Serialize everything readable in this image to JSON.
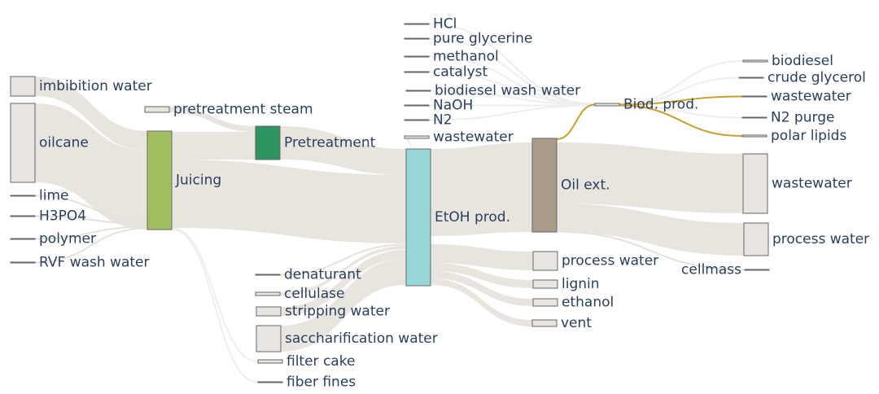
{
  "colors": {
    "link": "#e5e2db",
    "link_light": "#eeeeee",
    "link_gold": "#c8a030",
    "node_default": "#e8e5e0",
    "node_stroke": "#666666",
    "juicing": "#a3be60",
    "pretreatment": "#2e9462",
    "etoh": "#98d7d8",
    "oil_ext": "#ab9c8a",
    "label": "#2a3f5f"
  },
  "nodes": [
    {
      "id": "imbibition_water",
      "label": "imbibition water"
    },
    {
      "id": "oilcane",
      "label": "oilcane"
    },
    {
      "id": "lime",
      "label": "lime"
    },
    {
      "id": "h3po4",
      "label": "H3PO4"
    },
    {
      "id": "polymer",
      "label": "polymer"
    },
    {
      "id": "rvf",
      "label": "RVF wash water"
    },
    {
      "id": "pretreatment_steam",
      "label": "pretreatment steam"
    },
    {
      "id": "juicing",
      "label": "Juicing"
    },
    {
      "id": "pretreatment",
      "label": "Pretreatment"
    },
    {
      "id": "denaturant",
      "label": "denaturant"
    },
    {
      "id": "cellulase",
      "label": "cellulase"
    },
    {
      "id": "stripping_water",
      "label": "stripping water"
    },
    {
      "id": "sacch_water",
      "label": "saccharification water"
    },
    {
      "id": "filter_cake",
      "label": "filter cake"
    },
    {
      "id": "fiber_fines",
      "label": "fiber fines"
    },
    {
      "id": "hcl",
      "label": "HCl"
    },
    {
      "id": "pure_glycerine",
      "label": "pure glycerine"
    },
    {
      "id": "methanol",
      "label": "methanol"
    },
    {
      "id": "catalyst",
      "label": "catalyst"
    },
    {
      "id": "biod_wash",
      "label": "biodiesel wash water"
    },
    {
      "id": "naoh",
      "label": "NaOH"
    },
    {
      "id": "n2",
      "label": "N2"
    },
    {
      "id": "ww_mid",
      "label": "wastewater"
    },
    {
      "id": "etoh",
      "label": "EtOH prod."
    },
    {
      "id": "oil_ext",
      "label": "Oil ext."
    },
    {
      "id": "pw_mid",
      "label": "process water"
    },
    {
      "id": "lignin",
      "label": "lignin"
    },
    {
      "id": "ethanol",
      "label": "ethanol"
    },
    {
      "id": "vent",
      "label": "vent"
    },
    {
      "id": "biod_prod",
      "label": "Biod. prod."
    },
    {
      "id": "biodiesel",
      "label": "biodiesel"
    },
    {
      "id": "crude_glycerol",
      "label": "crude glycerol"
    },
    {
      "id": "ww_top",
      "label": "wastewater"
    },
    {
      "id": "n2_purge",
      "label": "N2 purge"
    },
    {
      "id": "polar_lipids",
      "label": "polar lipids"
    },
    {
      "id": "ww_right",
      "label": "wastewater"
    },
    {
      "id": "pw_right",
      "label": "process water"
    },
    {
      "id": "cellmass",
      "label": "cellmass"
    }
  ]
}
